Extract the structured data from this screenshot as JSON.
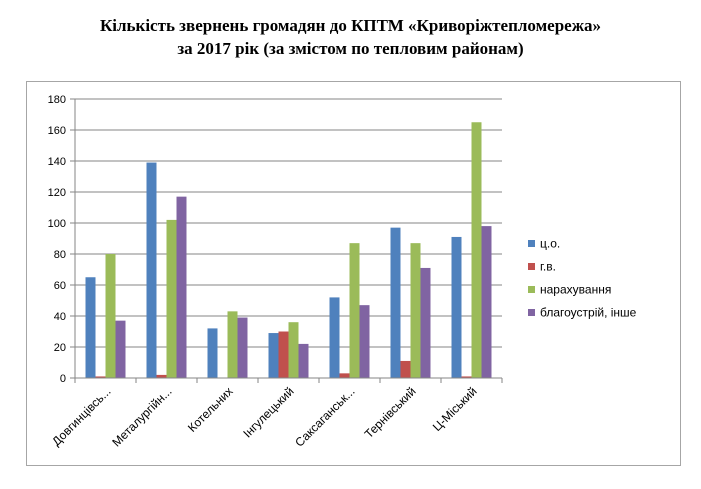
{
  "title_line1": "Кількість звернень громадян до КПТМ «Криворіжтепломережа»",
  "title_line2": "за 2017 рік (за змістом по тепловим районам)",
  "chart_data": {
    "type": "bar",
    "title": "Кількість звернень громадян до КПТМ «Криворіжтепломережа» за 2017 рік (за змістом по тепловим районам)",
    "xlabel": "",
    "ylabel": "",
    "ylim": [
      0,
      180
    ],
    "yticks": [
      0,
      20,
      40,
      60,
      80,
      100,
      120,
      140,
      160,
      180
    ],
    "grid": true,
    "legend_position": "right",
    "categories": [
      "Довгинцівсь...",
      "Металургійн...",
      "Котельних",
      "Інгулецький",
      "Саксаганськ...",
      "Тернівський",
      "Ц-Міський"
    ],
    "series": [
      {
        "name": "ц.о.",
        "color": "#4f81bd",
        "values": [
          65,
          139,
          32,
          29,
          52,
          97,
          91
        ]
      },
      {
        "name": "г.в.",
        "color": "#c0504d",
        "values": [
          1,
          2,
          0,
          30,
          3,
          11,
          1
        ]
      },
      {
        "name": "нарахування",
        "color": "#9bbb59",
        "values": [
          80,
          102,
          43,
          36,
          87,
          87,
          165
        ]
      },
      {
        "name": "благоустрій, інше",
        "color": "#8064a2",
        "values": [
          37,
          117,
          39,
          22,
          47,
          71,
          98
        ]
      }
    ]
  }
}
